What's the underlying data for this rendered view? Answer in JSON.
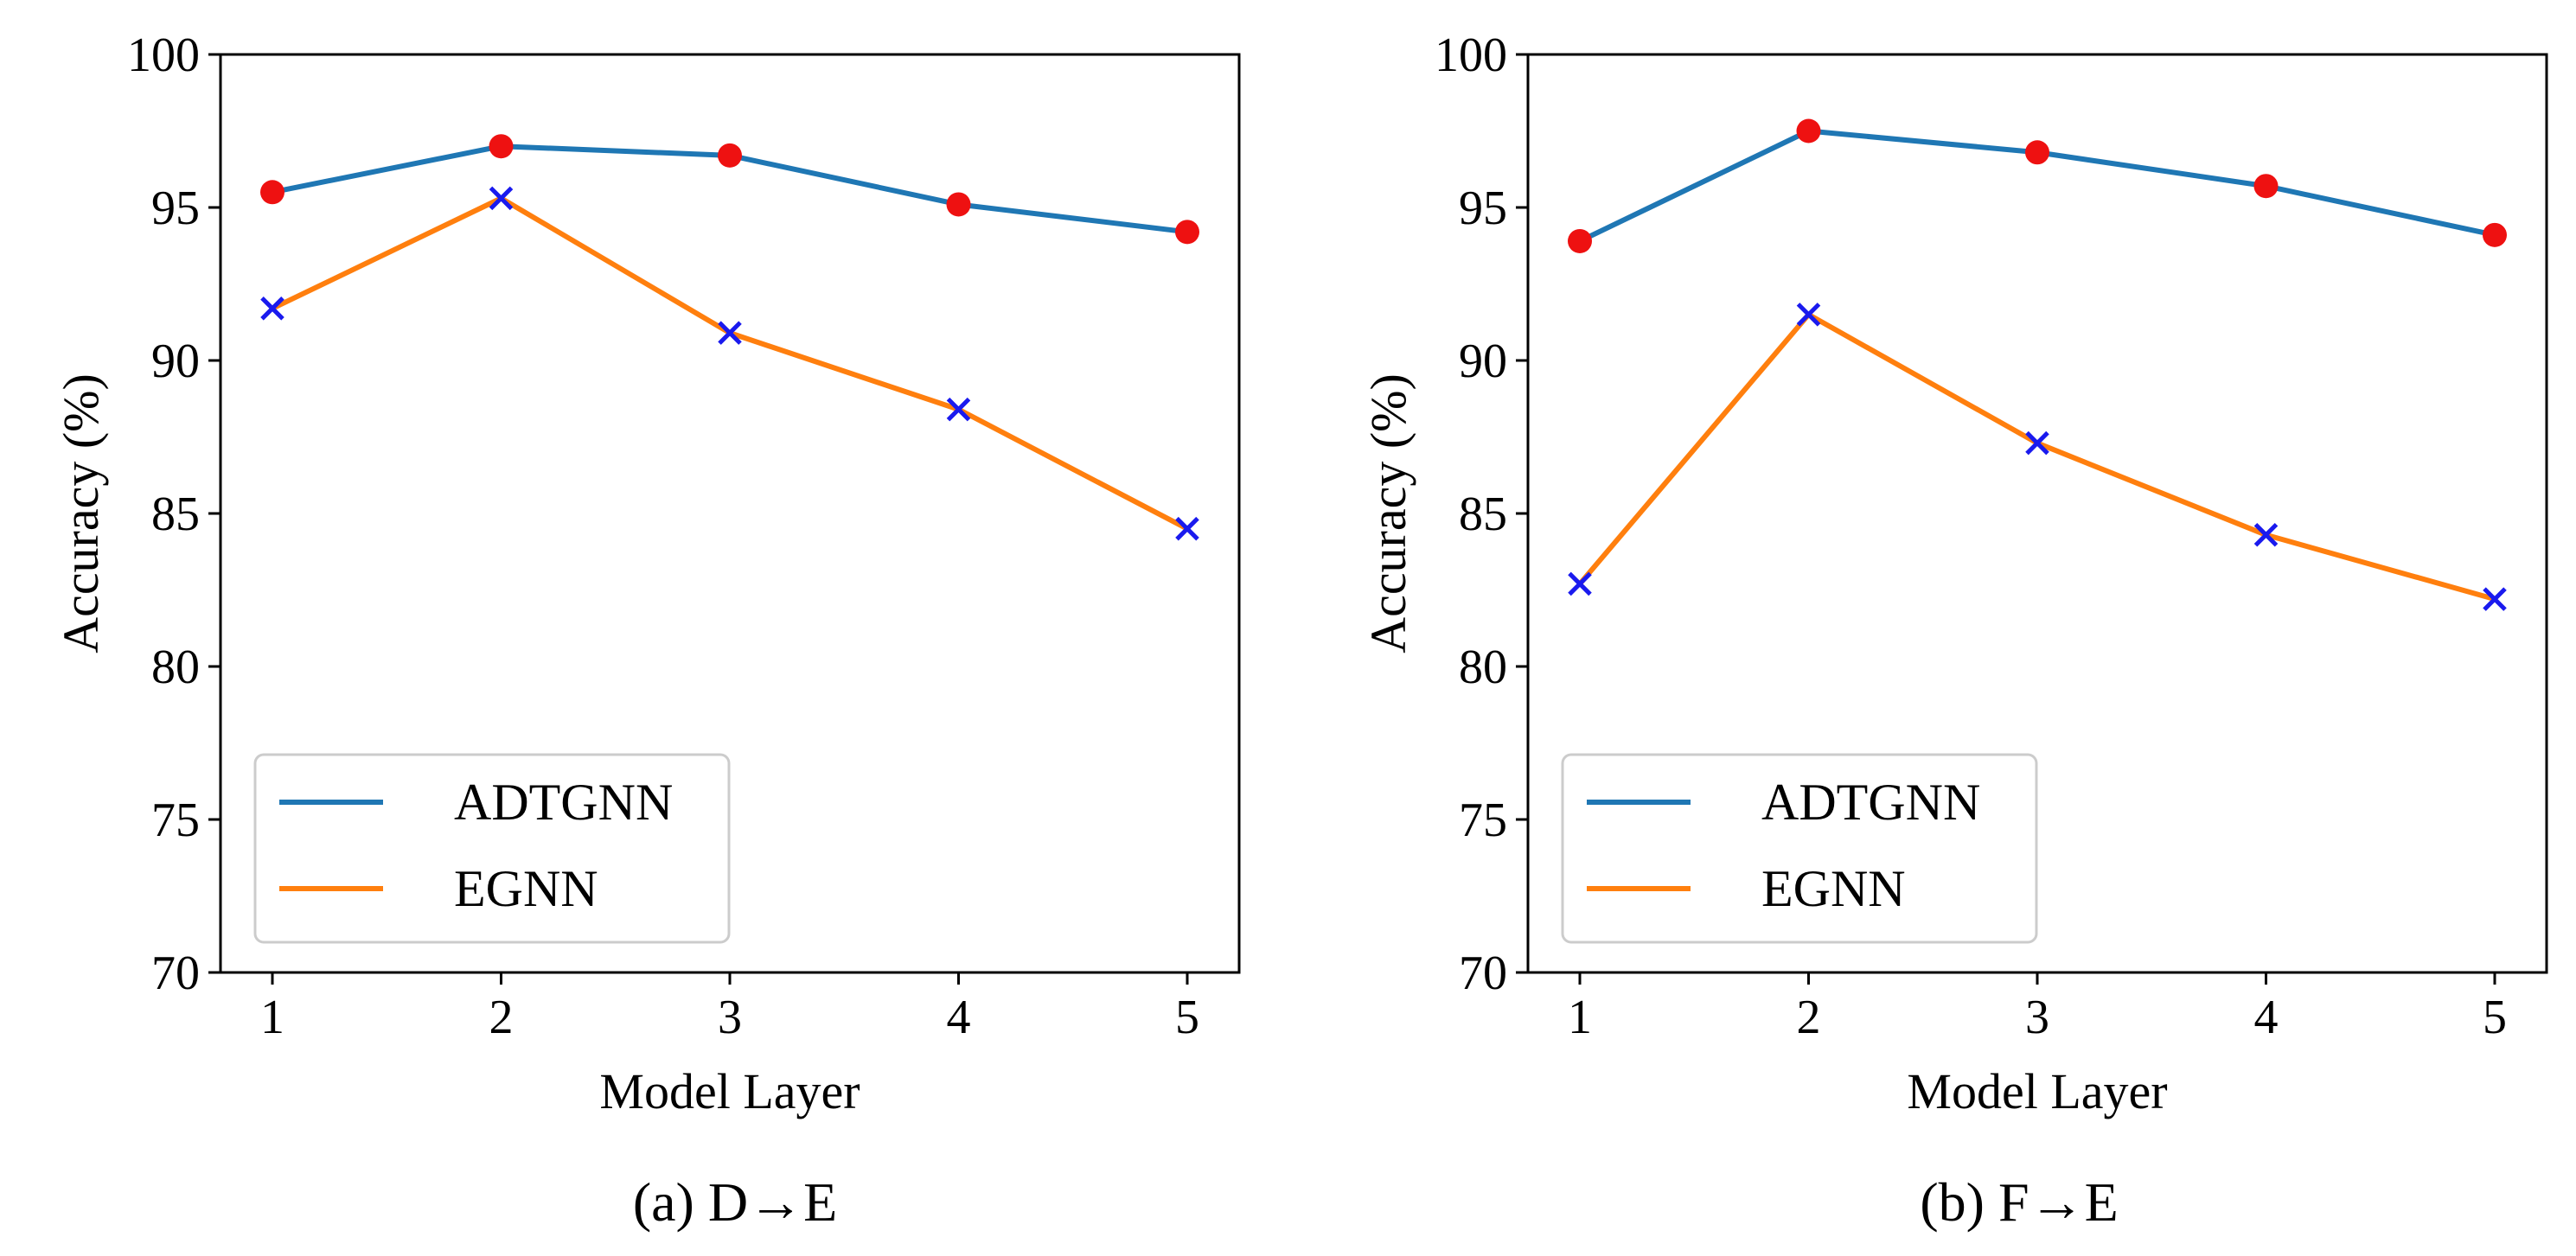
{
  "chart_data": [
    {
      "type": "line",
      "panel_caption": "(a)  D→E",
      "xlabel": "Model Layer",
      "ylabel": "Accuracy (%)",
      "x": [
        1,
        2,
        3,
        4,
        5
      ],
      "ylim": [
        70,
        100
      ],
      "yticks": [
        70,
        75,
        80,
        85,
        90,
        95,
        100
      ],
      "grid": false,
      "legend": "lower-left",
      "series": [
        {
          "name": "ADTGNN",
          "color": "#1f77b4",
          "marker": "circle",
          "marker_color": "#ee1111",
          "values": [
            95.5,
            97.0,
            96.7,
            95.1,
            94.2
          ]
        },
        {
          "name": "EGNN",
          "color": "#ff7f0e",
          "marker": "x",
          "marker_color": "#1a1aee",
          "values": [
            91.7,
            95.3,
            90.9,
            88.4,
            84.5
          ]
        }
      ]
    },
    {
      "type": "line",
      "panel_caption": "(b)  F→E",
      "xlabel": "Model Layer",
      "ylabel": "Accuracy (%)",
      "x": [
        1,
        2,
        3,
        4,
        5
      ],
      "ylim": [
        70,
        100
      ],
      "yticks": [
        70,
        75,
        80,
        85,
        90,
        95,
        100
      ],
      "grid": false,
      "legend": "lower-left",
      "series": [
        {
          "name": "ADTGNN",
          "color": "#1f77b4",
          "marker": "circle",
          "marker_color": "#ee1111",
          "values": [
            93.9,
            97.5,
            96.8,
            95.7,
            94.1
          ]
        },
        {
          "name": "EGNN",
          "color": "#ff7f0e",
          "marker": "x",
          "marker_color": "#1a1aee",
          "values": [
            82.7,
            91.5,
            87.3,
            84.3,
            82.2
          ]
        }
      ]
    }
  ]
}
